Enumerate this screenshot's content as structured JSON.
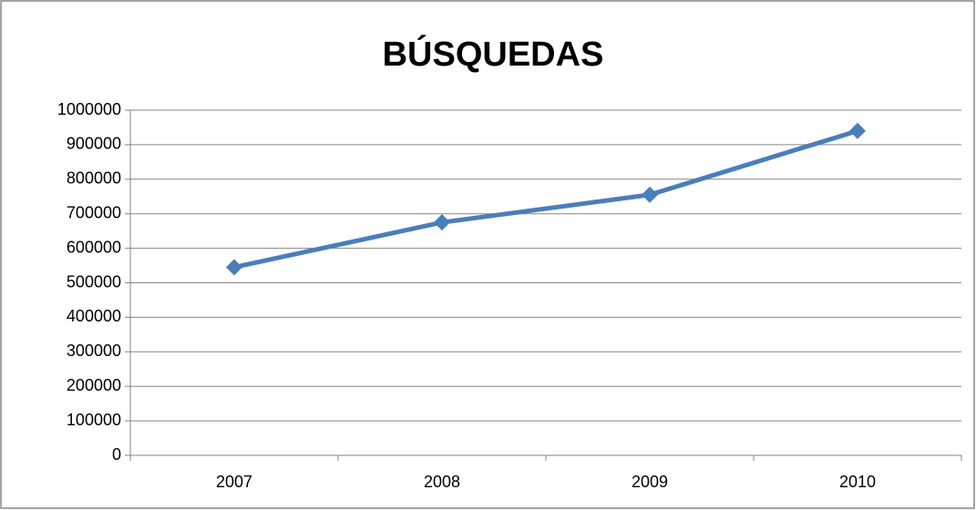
{
  "chart_data": {
    "type": "line",
    "title": "BÚSQUEDAS",
    "categories": [
      "2007",
      "2008",
      "2009",
      "2010"
    ],
    "series": [
      {
        "name": "BÚSQUEDAS",
        "color": "#4a7ebb",
        "values": [
          545000,
          675000,
          755000,
          940000
        ]
      }
    ],
    "ylim": [
      0,
      1000000
    ],
    "yticks": [
      0,
      100000,
      200000,
      300000,
      400000,
      500000,
      600000,
      700000,
      800000,
      900000,
      1000000
    ],
    "grid": true
  }
}
